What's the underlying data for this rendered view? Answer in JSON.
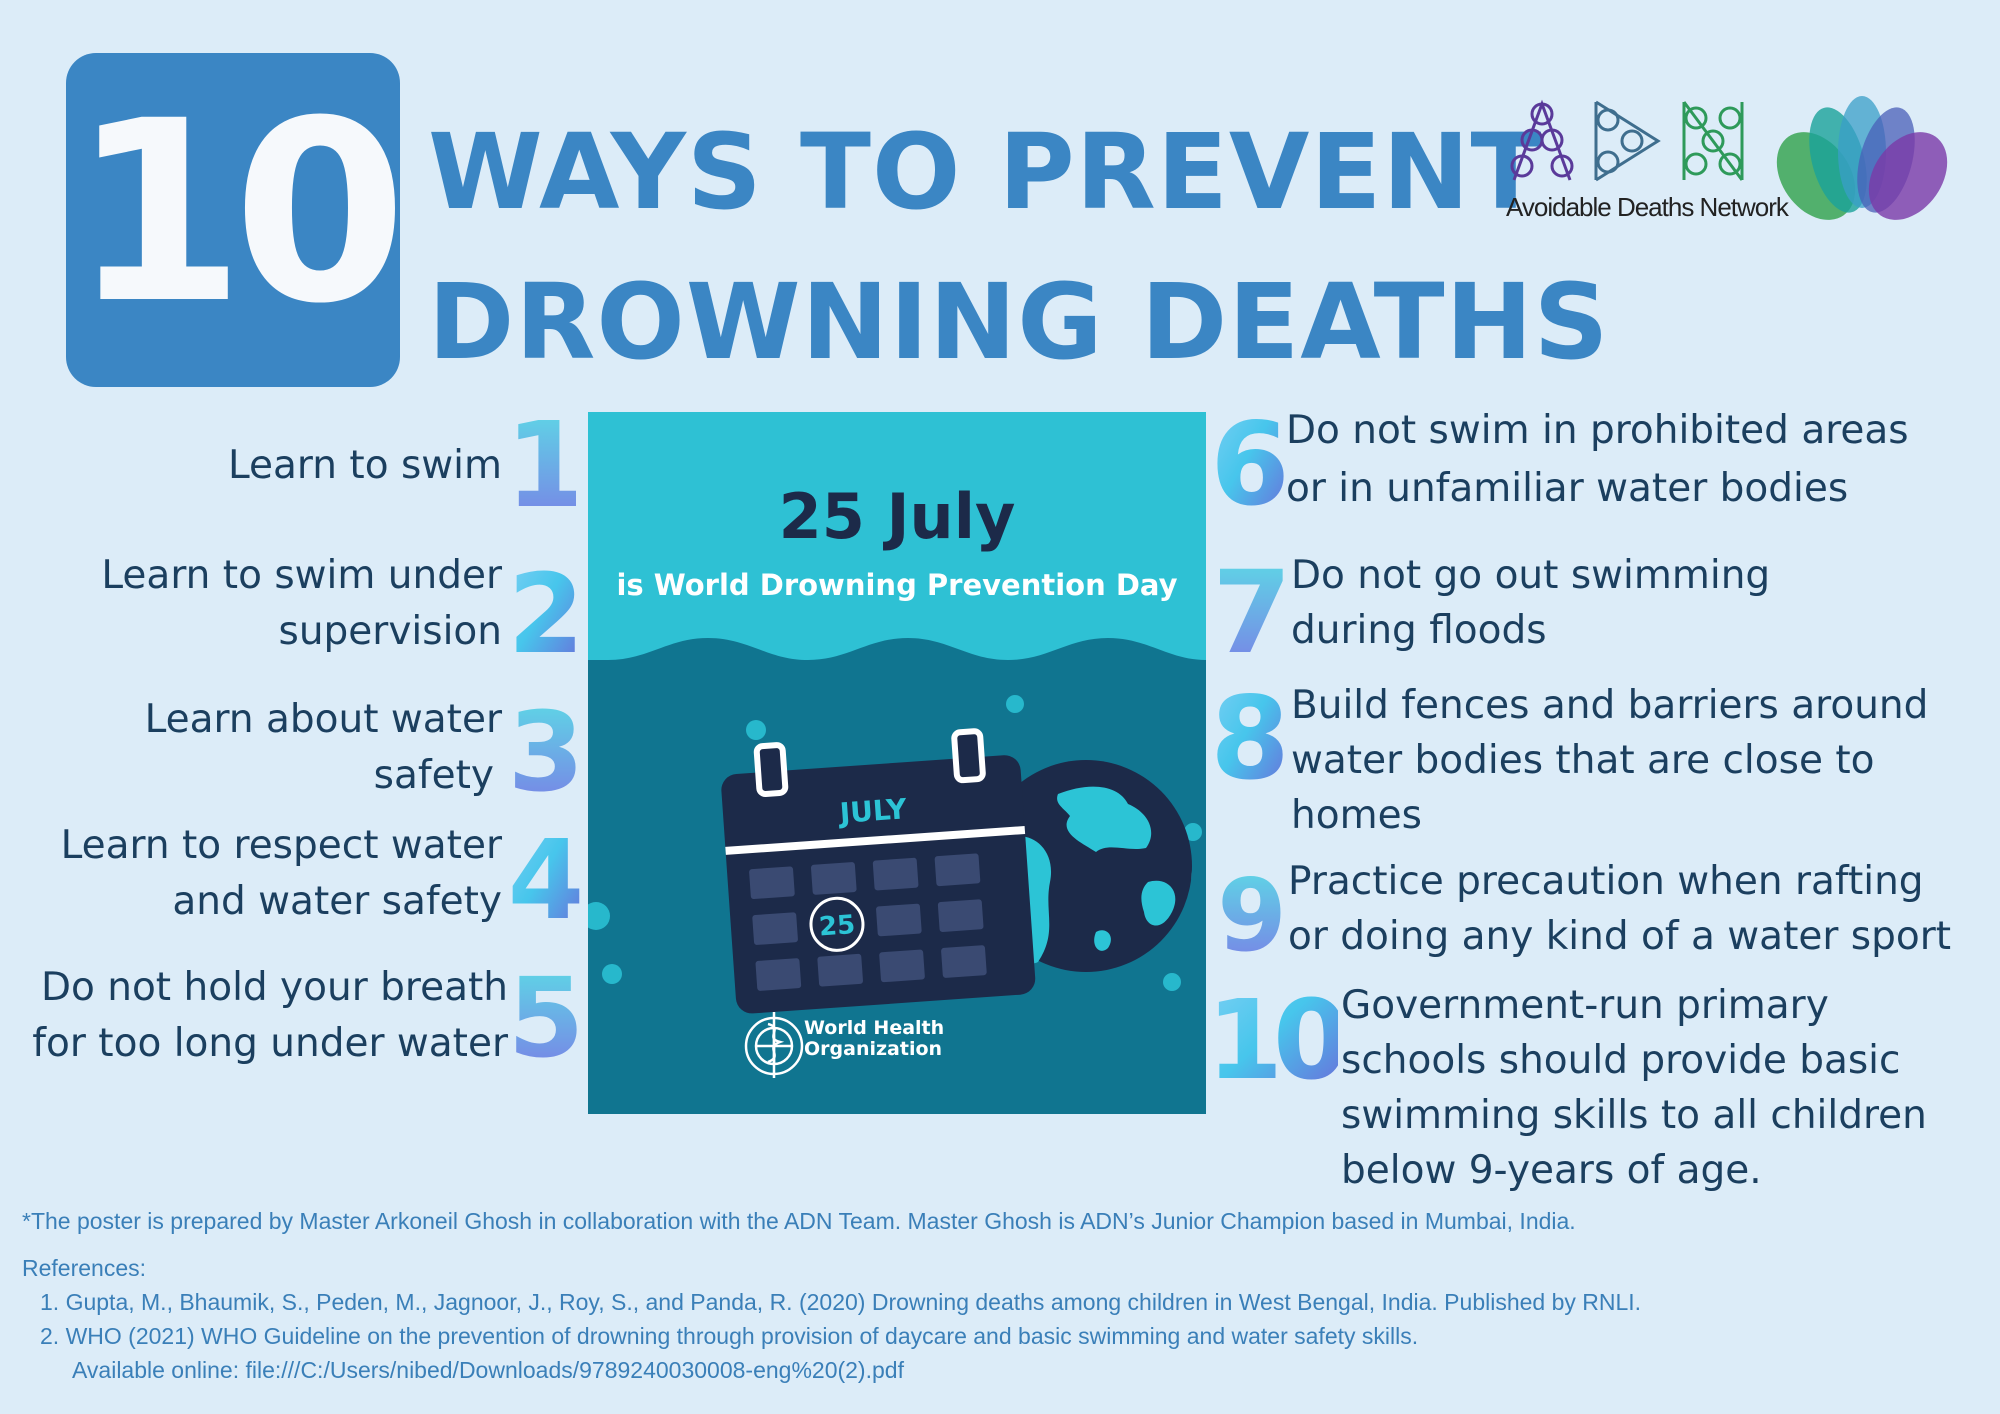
{
  "header": {
    "big_number": "10",
    "title_line1": "WAYS TO PREVENT",
    "title_line2": "DROWNING DEATHS"
  },
  "logos": {
    "adn_letters": "ADN",
    "adn_caption": "Avoidable Deaths Network",
    "lotus": "lotus-logo-icon"
  },
  "colors": {
    "background": "#dcecf8",
    "title_blue": "#3b86c4",
    "panel_teal": "#107590",
    "panel_top": "#2ec1d4",
    "text_dark": "#1b3f5f",
    "footer_blue": "#3a7fb8"
  },
  "left_items": [
    {
      "number": "1",
      "lines": [
        "Learn to swim"
      ]
    },
    {
      "number": "2",
      "lines": [
        "Learn to swim under",
        "supervision"
      ]
    },
    {
      "number": "3",
      "lines": [
        "Learn about water",
        "safety"
      ]
    },
    {
      "number": "4",
      "lines": [
        "Learn to respect water",
        "and water safety"
      ]
    },
    {
      "number": "5",
      "lines": [
        "Do not hold your breath",
        "for too long under water"
      ]
    }
  ],
  "right_items": [
    {
      "number": "6",
      "lines": [
        "Do not swim in prohibited areas",
        "or in unfamiliar water bodies"
      ]
    },
    {
      "number": "7",
      "lines": [
        "Do not go out swimming",
        "during floods"
      ]
    },
    {
      "number": "8",
      "lines": [
        "Build fences and barriers around",
        "water bodies that are close to",
        "homes"
      ]
    },
    {
      "number": "9",
      "lines": [
        "Practice precaution when rafting",
        "or doing any kind of a water sport"
      ]
    },
    {
      "number": "10",
      "lines": [
        "Government-run primary",
        "schools should provide basic",
        "swimming skills to all children",
        "below 9-years of age."
      ]
    }
  ],
  "panel": {
    "date": "25 July",
    "subtitle": "is World Drowning Prevention Day",
    "calendar_month": "JULY",
    "calendar_day": "25",
    "org_line1": "World Health",
    "org_line2": "Organization"
  },
  "footer": {
    "note": "*The poster is prepared by Master Arkoneil Ghosh in collaboration with the ADN Team. Master Ghosh is ADN’s Junior Champion based in Mumbai, India.",
    "references_label": "References:",
    "references": [
      {
        "n": "1.",
        "text": "Gupta, M., Bhaumik, S., Peden, M., Jagnoor, J., Roy, S., and Panda, R. (2020) Drowning deaths among children in West Bengal, India. Published by RNLI."
      },
      {
        "n": "2.",
        "text": "WHO (2021) WHO Guideline on the prevention of drowning through provision of daycare and basic swimming and water safety skills."
      }
    ],
    "available_online": "Available online: file:///C:/Users/nibed/Downloads/9789240030008-eng%20(2).pdf"
  }
}
